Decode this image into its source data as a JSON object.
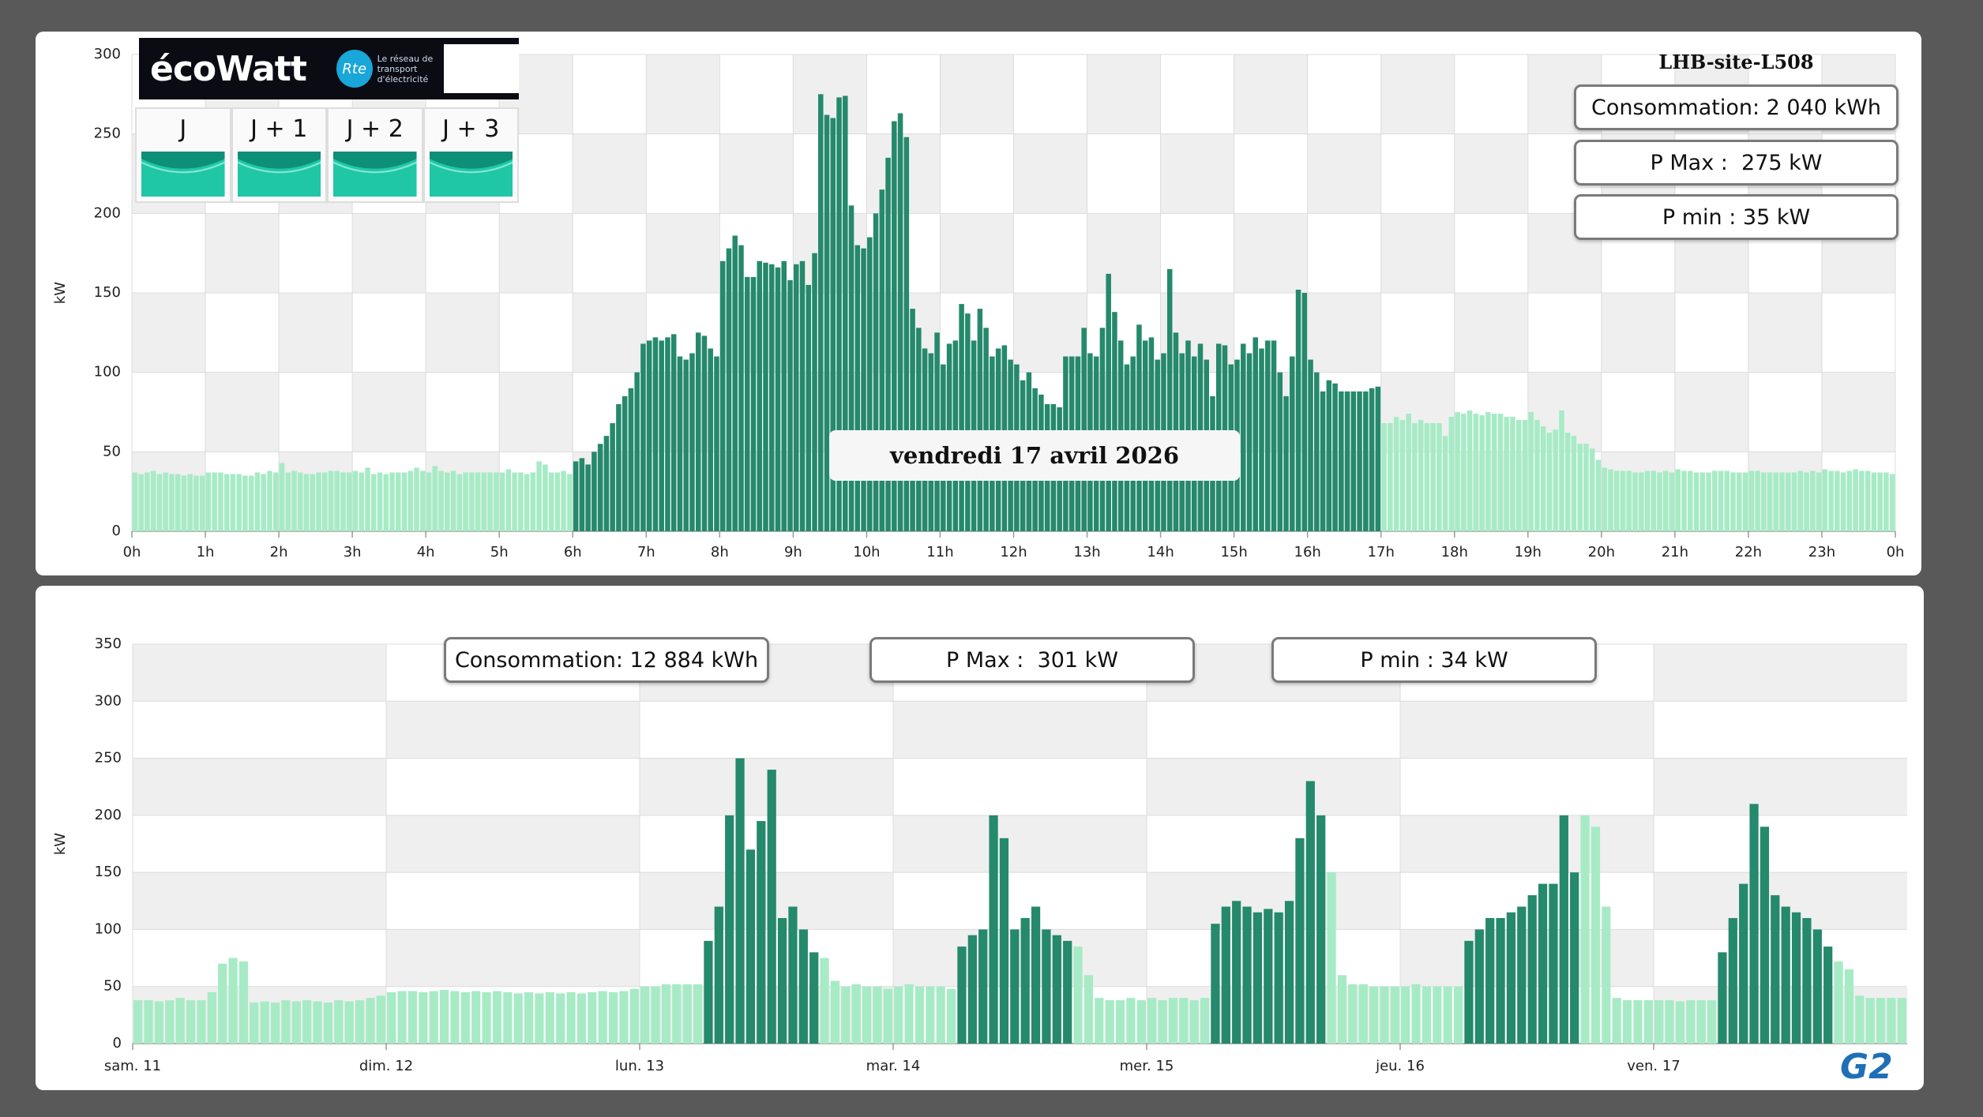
{
  "chart_data": [
    {
      "type": "bar",
      "ylabel": "kW",
      "xlim": [
        0,
        1440
      ],
      "ylim": [
        0,
        300
      ],
      "yticks": [
        0,
        50,
        100,
        150,
        200,
        250,
        300
      ],
      "xticks": [
        {
          "value": 0,
          "label": "0h"
        },
        {
          "value": 60,
          "label": "1h"
        },
        {
          "value": 120,
          "label": "2h"
        },
        {
          "value": 180,
          "label": "3h"
        },
        {
          "value": 240,
          "label": "4h"
        },
        {
          "value": 300,
          "label": "5h"
        },
        {
          "value": 360,
          "label": "6h"
        },
        {
          "value": 420,
          "label": "7h"
        },
        {
          "value": 480,
          "label": "8h"
        },
        {
          "value": 540,
          "label": "9h"
        },
        {
          "value": 600,
          "label": "10h"
        },
        {
          "value": 660,
          "label": "11h"
        },
        {
          "value": 720,
          "label": "12h"
        },
        {
          "value": 780,
          "label": "13h"
        },
        {
          "value": 840,
          "label": "14h"
        },
        {
          "value": 900,
          "label": "15h"
        },
        {
          "value": 960,
          "label": "16h"
        },
        {
          "value": 1020,
          "label": "17h"
        },
        {
          "value": 1080,
          "label": "18h"
        },
        {
          "value": 1140,
          "label": "19h"
        },
        {
          "value": 1200,
          "label": "20h"
        },
        {
          "value": 1260,
          "label": "21h"
        },
        {
          "value": 1320,
          "label": "22h"
        },
        {
          "value": 1380,
          "label": "23h"
        },
        {
          "value": 1440,
          "label": "0h"
        }
      ],
      "color": "#a6ebc5",
      "highlight_color": "#25896b",
      "highlight": [
        [
          360,
          1020
        ]
      ],
      "grid": true,
      "x": [
        0,
        5,
        10,
        15,
        20,
        25,
        30,
        35,
        40,
        45,
        50,
        55,
        60,
        65,
        70,
        75,
        80,
        85,
        90,
        95,
        100,
        105,
        110,
        115,
        120,
        125,
        130,
        135,
        140,
        145,
        150,
        155,
        160,
        165,
        170,
        175,
        180,
        185,
        190,
        195,
        200,
        205,
        210,
        215,
        220,
        225,
        230,
        235,
        240,
        245,
        250,
        255,
        260,
        265,
        270,
        275,
        280,
        285,
        290,
        295,
        300,
        305,
        310,
        315,
        320,
        325,
        330,
        335,
        340,
        345,
        350,
        355,
        360,
        365,
        370,
        375,
        380,
        385,
        390,
        395,
        400,
        405,
        410,
        415,
        420,
        425,
        430,
        435,
        440,
        445,
        450,
        455,
        460,
        465,
        470,
        475,
        480,
        485,
        490,
        495,
        500,
        505,
        510,
        515,
        520,
        525,
        530,
        535,
        540,
        545,
        550,
        555,
        560,
        565,
        570,
        575,
        580,
        585,
        590,
        595,
        600,
        605,
        610,
        615,
        620,
        625,
        630,
        635,
        640,
        645,
        650,
        655,
        660,
        665,
        670,
        675,
        680,
        685,
        690,
        695,
        700,
        705,
        710,
        715,
        720,
        725,
        730,
        735,
        740,
        745,
        750,
        755,
        760,
        765,
        770,
        775,
        780,
        785,
        790,
        795,
        800,
        805,
        810,
        815,
        820,
        825,
        830,
        835,
        840,
        845,
        850,
        855,
        860,
        865,
        870,
        875,
        880,
        885,
        890,
        895,
        900,
        905,
        910,
        915,
        920,
        925,
        930,
        935,
        940,
        945,
        950,
        955,
        960,
        965,
        970,
        975,
        980,
        985,
        990,
        995,
        1000,
        1005,
        1010,
        1015,
        1020,
        1025,
        1030,
        1035,
        1040,
        1045,
        1050,
        1055,
        1060,
        1065,
        1070,
        1075,
        1080,
        1085,
        1090,
        1095,
        1100,
        1105,
        1110,
        1115,
        1120,
        1125,
        1130,
        1135,
        1140,
        1145,
        1150,
        1155,
        1160,
        1165,
        1170,
        1175,
        1180,
        1185,
        1190,
        1195,
        1200,
        1205,
        1210,
        1215,
        1220,
        1225,
        1230,
        1235,
        1240,
        1245,
        1250,
        1255,
        1260,
        1265,
        1270,
        1275,
        1280,
        1285,
        1290,
        1295,
        1300,
        1305,
        1310,
        1315,
        1320,
        1325,
        1330,
        1335,
        1340,
        1345,
        1350,
        1355,
        1360,
        1365,
        1370,
        1375,
        1380,
        1385,
        1390,
        1395,
        1400,
        1405,
        1410,
        1415,
        1420,
        1425,
        1430,
        1435
      ],
      "values": [
        37,
        36,
        37,
        38,
        36,
        37,
        36,
        36,
        35,
        36,
        35,
        35,
        37,
        37,
        37,
        36,
        36,
        36,
        35,
        35,
        37,
        36,
        38,
        37,
        43,
        37,
        38,
        37,
        36,
        36,
        37,
        37,
        38,
        38,
        37,
        37,
        38,
        37,
        40,
        36,
        37,
        36,
        37,
        37,
        37,
        38,
        40,
        38,
        37,
        41,
        38,
        37,
        38,
        36,
        37,
        37,
        37,
        37,
        37,
        37,
        37,
        39,
        37,
        37,
        36,
        37,
        44,
        42,
        37,
        37,
        38,
        36,
        44,
        46,
        42,
        50,
        55,
        60,
        68,
        80,
        85,
        90,
        100,
        118,
        120,
        122,
        120,
        122,
        124,
        110,
        108,
        112,
        125,
        123,
        115,
        110,
        170,
        178,
        186,
        180,
        160,
        160,
        170,
        169,
        168,
        166,
        170,
        158,
        168,
        170,
        155,
        175,
        275,
        262,
        260,
        273,
        274,
        205,
        180,
        178,
        185,
        200,
        215,
        235,
        258,
        263,
        248,
        140,
        128,
        115,
        112,
        125,
        105,
        118,
        120,
        143,
        137,
        120,
        140,
        128,
        110,
        115,
        117,
        108,
        105,
        95,
        100,
        90,
        86,
        80,
        80,
        78,
        110,
        110,
        110,
        128,
        112,
        110,
        128,
        162,
        138,
        120,
        105,
        110,
        130,
        120,
        122,
        108,
        112,
        165,
        125,
        112,
        120,
        110,
        118,
        108,
        85,
        118,
        117,
        105,
        108,
        118,
        112,
        122,
        115,
        120,
        120,
        100,
        85,
        110,
        152,
        150,
        108,
        100,
        88,
        95,
        93,
        88,
        88,
        88,
        88,
        88,
        90,
        91,
        68,
        68,
        72,
        70,
        74,
        68,
        70,
        68,
        68,
        68,
        60,
        72,
        75,
        74,
        76,
        74,
        73,
        75,
        74,
        74,
        72,
        72,
        70,
        70,
        75,
        70,
        66,
        62,
        64,
        76,
        62,
        60,
        55,
        55,
        52,
        45,
        40,
        39,
        38,
        38,
        38,
        37,
        37,
        38,
        38,
        37,
        38,
        37,
        39,
        38,
        38,
        37,
        37,
        37,
        38,
        38,
        38,
        37,
        37,
        37,
        38,
        38,
        37,
        37,
        37,
        37,
        37,
        37,
        38,
        37,
        38,
        37,
        39,
        38,
        38,
        37,
        38,
        39,
        38,
        38,
        37,
        37,
        37,
        36
      ]
    },
    {
      "type": "bar",
      "ylabel": "kW",
      "xlim": [
        0,
        168
      ],
      "ylim": [
        0,
        350
      ],
      "yticks": [
        0,
        50,
        100,
        150,
        200,
        250,
        300,
        350
      ],
      "xticks": [
        {
          "value": 0,
          "label": "sam. 11"
        },
        {
          "value": 24,
          "label": "dim. 12"
        },
        {
          "value": 48,
          "label": "lun. 13"
        },
        {
          "value": 72,
          "label": "mar. 14"
        },
        {
          "value": 96,
          "label": "mer. 15"
        },
        {
          "value": 120,
          "label": "jeu. 16"
        },
        {
          "value": 144,
          "label": "ven. 17"
        }
      ],
      "color": "#a6ebc5",
      "highlight_color": "#25896b",
      "highlight": [
        [
          54,
          65
        ],
        [
          78,
          89
        ],
        [
          102,
          113
        ],
        [
          126,
          137
        ],
        [
          150,
          161
        ]
      ],
      "grid": true,
      "x": [
        0,
        1,
        2,
        3,
        4,
        5,
        6,
        7,
        8,
        9,
        10,
        11,
        12,
        13,
        14,
        15,
        16,
        17,
        18,
        19,
        20,
        21,
        22,
        23,
        24,
        25,
        26,
        27,
        28,
        29,
        30,
        31,
        32,
        33,
        34,
        35,
        36,
        37,
        38,
        39,
        40,
        41,
        42,
        43,
        44,
        45,
        46,
        47,
        48,
        49,
        50,
        51,
        52,
        53,
        54,
        55,
        56,
        57,
        58,
        59,
        60,
        61,
        62,
        63,
        64,
        65,
        66,
        67,
        68,
        69,
        70,
        71,
        72,
        73,
        74,
        75,
        76,
        77,
        78,
        79,
        80,
        81,
        82,
        83,
        84,
        85,
        86,
        87,
        88,
        89,
        90,
        91,
        92,
        93,
        94,
        95,
        96,
        97,
        98,
        99,
        100,
        101,
        102,
        103,
        104,
        105,
        106,
        107,
        108,
        109,
        110,
        111,
        112,
        113,
        114,
        115,
        116,
        117,
        118,
        119,
        120,
        121,
        122,
        123,
        124,
        125,
        126,
        127,
        128,
        129,
        130,
        131,
        132,
        133,
        134,
        135,
        136,
        137,
        138,
        139,
        140,
        141,
        142,
        143,
        144,
        145,
        146,
        147,
        148,
        149,
        150,
        151,
        152,
        153,
        154,
        155,
        156,
        157,
        158,
        159,
        160,
        161,
        162,
        163,
        164,
        165,
        166,
        167
      ],
      "values": [
        38,
        38,
        37,
        38,
        40,
        38,
        38,
        45,
        70,
        75,
        72,
        36,
        37,
        36,
        38,
        37,
        38,
        37,
        36,
        38,
        37,
        38,
        40,
        42,
        45,
        46,
        46,
        45,
        46,
        47,
        46,
        45,
        46,
        45,
        46,
        45,
        44,
        45,
        44,
        45,
        44,
        45,
        44,
        45,
        46,
        45,
        46,
        48,
        50,
        50,
        52,
        52,
        52,
        52,
        90,
        120,
        200,
        250,
        170,
        195,
        240,
        110,
        120,
        100,
        80,
        75,
        55,
        50,
        52,
        50,
        50,
        48,
        50,
        52,
        50,
        50,
        50,
        48,
        85,
        95,
        100,
        200,
        180,
        100,
        110,
        120,
        100,
        95,
        90,
        85,
        60,
        40,
        38,
        38,
        40,
        38,
        40,
        38,
        40,
        40,
        38,
        40,
        105,
        120,
        125,
        120,
        115,
        118,
        115,
        125,
        180,
        230,
        200,
        150,
        60,
        52,
        52,
        50,
        50,
        50,
        50,
        52,
        50,
        50,
        50,
        50,
        90,
        100,
        110,
        110,
        115,
        120,
        130,
        140,
        140,
        200,
        150,
        200,
        190,
        120,
        40,
        38,
        38,
        38,
        38,
        38,
        37,
        38,
        38,
        38,
        80,
        110,
        140,
        210,
        190,
        130,
        120,
        115,
        110,
        100,
        85,
        72,
        65,
        42,
        40,
        40,
        40,
        40
      ]
    }
  ],
  "ecowatt": {
    "logo": "écoWatt",
    "rte": "Rte",
    "rte_text": "Le réseau de transport d'électricité",
    "days": [
      "J",
      "J + 1",
      "J + 2",
      "J + 3"
    ]
  },
  "site": "LHB-site-L508",
  "day_summary": {
    "consumption": "Consommation: 2 040 kWh",
    "pmax": "P Max :  275 kW",
    "pmin": "P min : 35 kW"
  },
  "date_label": "vendredi 17 avril 2026",
  "week_summary": {
    "consumption": "Consommation: 12 884 kWh",
    "pmax": "P Max :  301 kW",
    "pmin": "P min : 34 kW"
  },
  "footer_logo": "G2"
}
